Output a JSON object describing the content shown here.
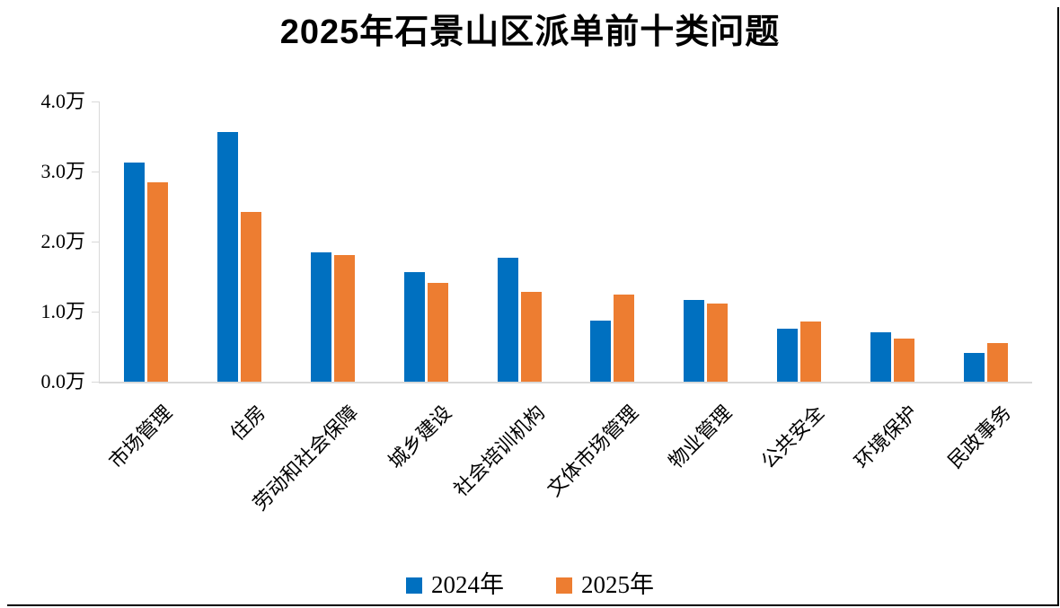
{
  "page": {
    "background": "#FFFFFF",
    "border_color": "#000000",
    "border_sides": "right-bottom"
  },
  "chart_data": {
    "type": "bar",
    "title": "2025年石景山区派单前十类问题",
    "categories": [
      "市场管理",
      "住房",
      "劳动和社会保障",
      "城乡建设",
      "社会培训机构",
      "文体市场管理",
      "物业管理",
      "公共安全",
      "环境保护",
      "民政事务"
    ],
    "series": [
      {
        "name": "2024年",
        "color": "#0070C0",
        "values": [
          3.13,
          3.56,
          1.84,
          1.56,
          1.77,
          0.87,
          1.17,
          0.76,
          0.7,
          0.41
        ]
      },
      {
        "name": "2025年",
        "color": "#ED7D31",
        "values": [
          2.84,
          2.42,
          1.81,
          1.41,
          1.28,
          1.24,
          1.12,
          0.86,
          0.61,
          0.55
        ]
      }
    ],
    "xlabel": "",
    "ylabel": "",
    "unit": "万",
    "ylim": [
      0,
      4.0
    ],
    "yticks": [
      0,
      1,
      2,
      3,
      4
    ],
    "ytick_labels": [
      "0.0万",
      "1.0万",
      "2.0万",
      "3.0万",
      "4.0万"
    ],
    "grid": false,
    "axis_color": "#D9D9D9",
    "x_label_rotation_deg": -45,
    "legend_position": "bottom"
  }
}
